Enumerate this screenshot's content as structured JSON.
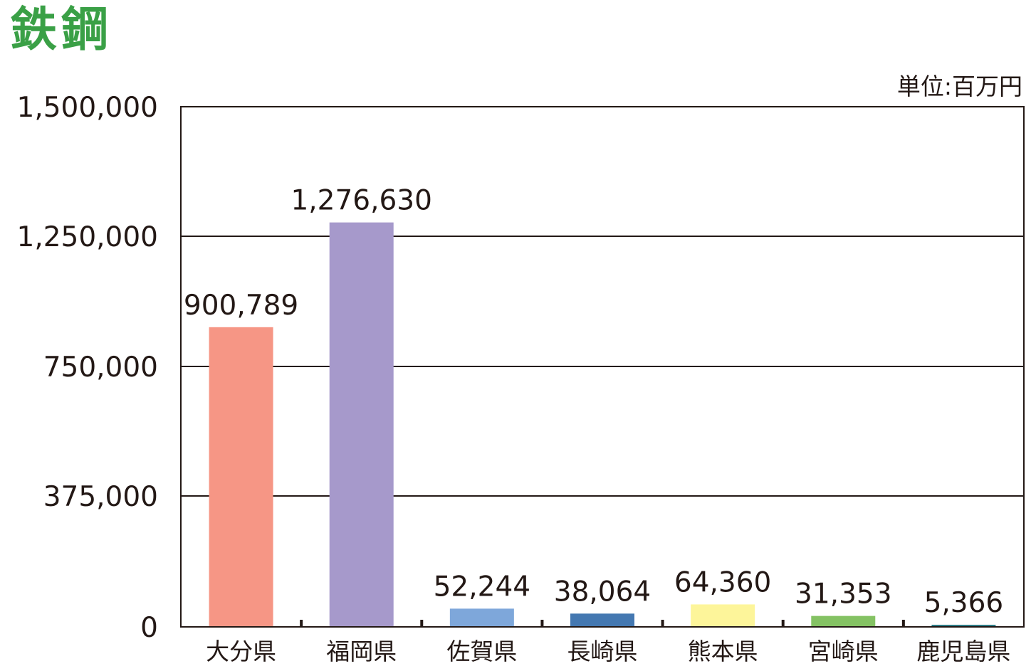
{
  "title": "鉄鋼",
  "unit_label": "単位:百万円",
  "chart_data": {
    "type": "bar",
    "title": "鉄鋼",
    "unit": "単位:百万円",
    "categories": [
      "大分県",
      "福岡県",
      "佐賀県",
      "長崎県",
      "熊本県",
      "宮崎県",
      "鹿児島県"
    ],
    "values": [
      900789,
      1276630,
      52244,
      38064,
      64360,
      31353,
      5366
    ],
    "value_labels": [
      "900,789",
      "1,276,630",
      "52,244",
      "38,064",
      "64,360",
      "31,353",
      "5,366"
    ],
    "colors": [
      "#f69685",
      "#a699cb",
      "#7ea7da",
      "#4478b1",
      "#fdf59a",
      "#84c263",
      "#2e7b86"
    ],
    "y_tick_values": [
      0,
      375000,
      750000,
      1250000,
      1500000
    ],
    "y_tick_labels": [
      "0",
      "375,000",
      "750,000",
      "1,250,000",
      "1,500,000"
    ],
    "ylim": [
      0,
      1500000
    ],
    "grid": true,
    "legend": "none"
  }
}
